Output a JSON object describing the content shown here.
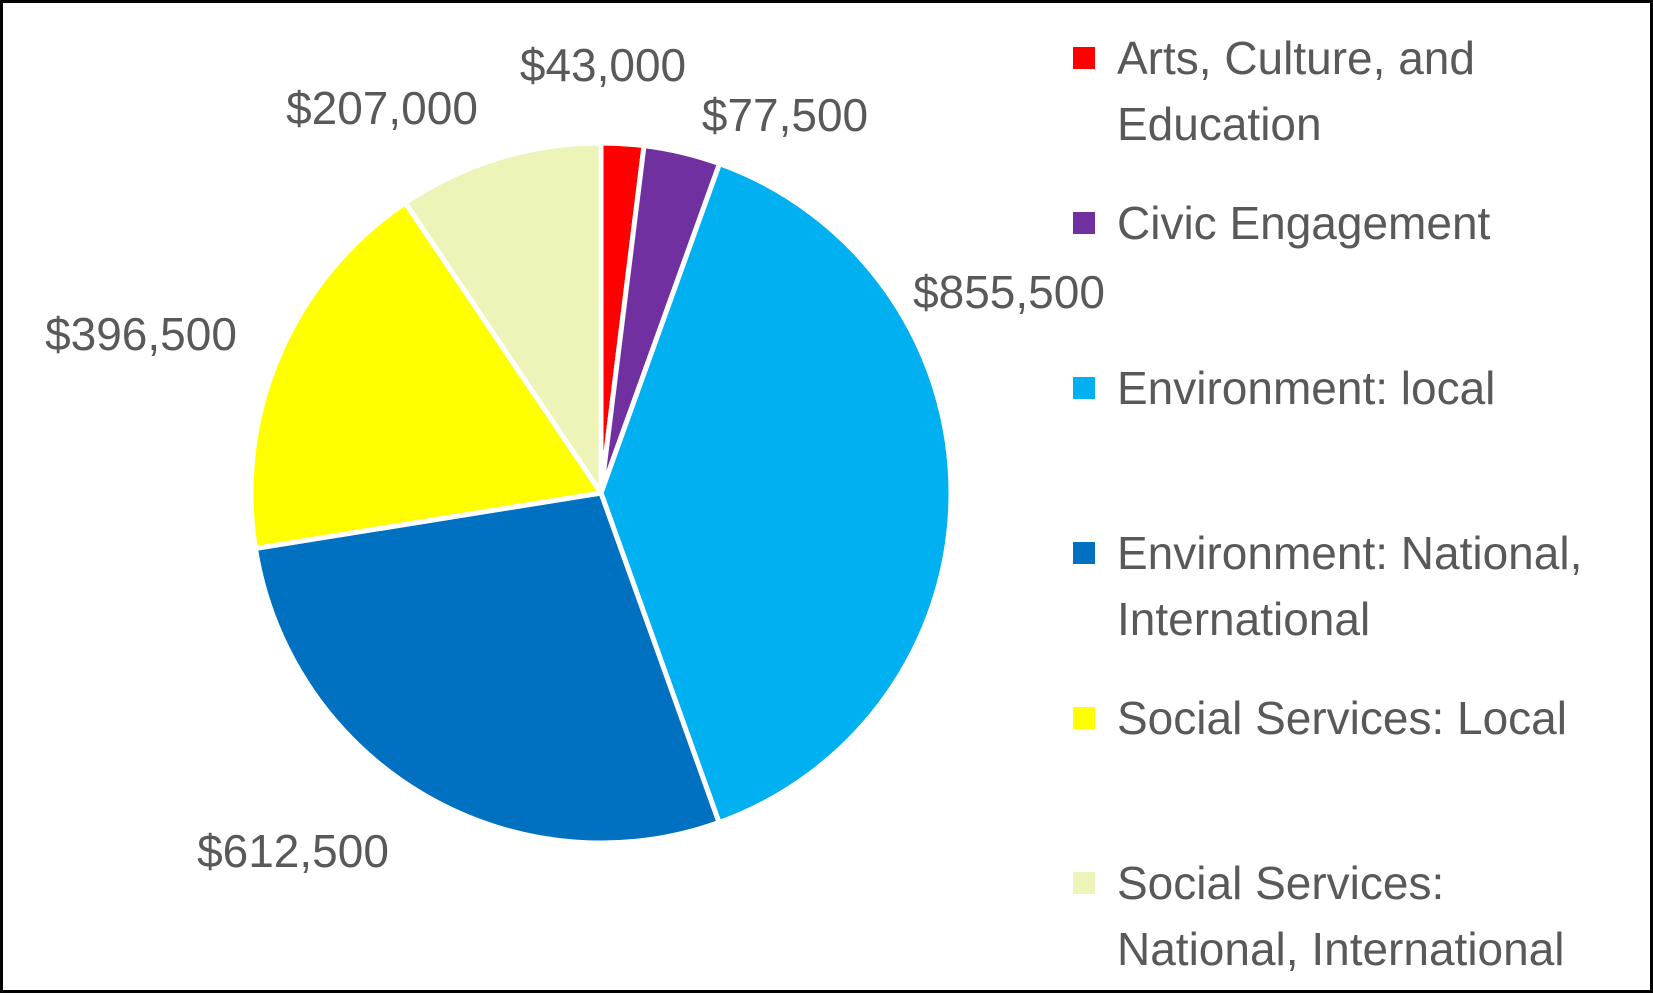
{
  "chart_data": {
    "type": "pie",
    "title": "",
    "categories": [
      "Arts, Culture, and Education",
      "Civic Engagement",
      "Environment: local",
      "Environment: National, International",
      "Social Services: Local",
      "Social Services: National, International"
    ],
    "values": [
      43000,
      77500,
      855500,
      612500,
      396500,
      207000
    ],
    "data_labels": [
      "$43,000",
      "$77,500",
      "$855,500",
      "$612,500",
      "$396,500",
      "$207,000"
    ],
    "colors": [
      "#FF0000",
      "#7030A0",
      "#00B0F0",
      "#0070C0",
      "#FFFF00",
      "#EEF3B8"
    ],
    "legend_placement": "right",
    "start_angle_deg": 0,
    "direction": "clockwise"
  }
}
